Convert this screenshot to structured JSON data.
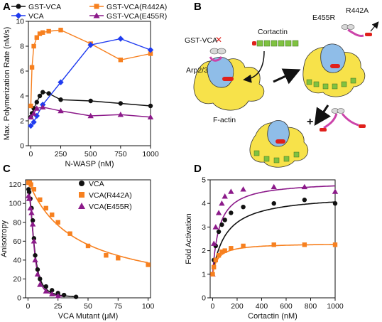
{
  "panels": {
    "A": "A",
    "B": "B",
    "C": "C",
    "D": "D"
  },
  "colors": {
    "black": "#111111",
    "orange": "#f7801f",
    "blue": "#1f3bf0",
    "purple": "#8c1a8a",
    "actin": "#f7e24a",
    "arp": "#8fbde8",
    "cortactin": "#7fc241",
    "vca_red": "#e0201b"
  },
  "diagram": {
    "labels": {
      "gst_vca": "GST-VCA",
      "cortactin": "Cortactin",
      "arp23": "Arp2/3",
      "factin": "F-actin",
      "e455r": "E455R",
      "r442a": "R442A",
      "plus": "+"
    }
  },
  "chart_data": [
    {
      "id": "A",
      "type": "line",
      "xlabel": "N-WASP (nM)",
      "ylabel": "Max. Polymerization Rate (nM/s)",
      "xlim": [
        -20,
        1000
      ],
      "ylim": [
        0,
        10
      ],
      "xticks": [
        0,
        250,
        500,
        750,
        1000
      ],
      "yticks": [
        0,
        2,
        4,
        6,
        8,
        10
      ],
      "legend": "top",
      "series": [
        {
          "name": "GST-VCA",
          "color": "#111111",
          "marker": "circle",
          "x": [
            0,
            10,
            25,
            50,
            75,
            100,
            150,
            250,
            500,
            750,
            1000
          ],
          "y": [
            2.3,
            2.6,
            3.0,
            3.5,
            4.0,
            4.3,
            4.2,
            3.7,
            3.6,
            3.4,
            3.2
          ]
        },
        {
          "name": "GST-VCA(R442A)",
          "color": "#f7801f",
          "marker": "square",
          "x": [
            0,
            10,
            25,
            50,
            75,
            100,
            150,
            250,
            500,
            750,
            1000
          ],
          "y": [
            3.2,
            6.3,
            8.0,
            8.7,
            9.0,
            9.1,
            9.2,
            9.3,
            8.2,
            6.9,
            7.4
          ]
        },
        {
          "name": "VCA",
          "color": "#1f3bf0",
          "marker": "diamond",
          "x": [
            0,
            25,
            50,
            100,
            250,
            500,
            750,
            1000
          ],
          "y": [
            1.6,
            1.9,
            2.4,
            3.3,
            5.1,
            8.1,
            8.6,
            7.7
          ]
        },
        {
          "name": "GST-VCA(E455R)",
          "color": "#8c1a8a",
          "marker": "triangle",
          "x": [
            0,
            25,
            50,
            100,
            250,
            500,
            750,
            1000
          ],
          "y": [
            2.3,
            2.6,
            3.0,
            3.1,
            2.8,
            2.4,
            2.5,
            2.3
          ]
        }
      ]
    },
    {
      "id": "C",
      "type": "scatter",
      "xlabel": "VCA Mutant (μM)",
      "ylabel": "Anisotropy",
      "xlim": [
        -2,
        102
      ],
      "ylim": [
        0,
        125
      ],
      "xticks": [
        0,
        25,
        50,
        75,
        100
      ],
      "yticks": [
        0,
        20,
        40,
        60,
        80,
        100,
        120
      ],
      "legend": "top-right",
      "series": [
        {
          "name": "VCA",
          "color": "#111111",
          "marker": "circle",
          "x": [
            0.5,
            1,
            2,
            3,
            4,
            5,
            6,
            8,
            10,
            15,
            20,
            25,
            30,
            40
          ],
          "y": [
            115,
            112,
            105,
            95,
            82,
            63,
            45,
            30,
            20,
            12,
            8,
            5,
            3,
            1
          ]
        },
        {
          "name": "VCA(R442A)",
          "color": "#f7801f",
          "marker": "square",
          "x": [
            0.5,
            1.5,
            2.5,
            5,
            10,
            15,
            20,
            25,
            35,
            50,
            65,
            75,
            100
          ],
          "y": [
            122,
            122,
            120,
            115,
            104,
            95,
            88,
            80,
            68,
            55,
            45,
            42,
            35
          ]
        },
        {
          "name": "VCA(E455R)",
          "color": "#8c1a8a",
          "marker": "triangle",
          "x": [
            0.5,
            1,
            2,
            3,
            4,
            5,
            6,
            8,
            10,
            15,
            20,
            25
          ],
          "y": [
            108,
            105,
            95,
            90,
            78,
            60,
            40,
            25,
            14,
            7,
            4,
            2
          ]
        }
      ]
    },
    {
      "id": "D",
      "type": "scatter",
      "xlabel": "Cortactin (nM)",
      "ylabel": "Fold Activation",
      "xlim": [
        -20,
        1000
      ],
      "ylim": [
        0,
        5
      ],
      "xticks": [
        0,
        200,
        400,
        600,
        800,
        1000
      ],
      "yticks": [
        0,
        1,
        2,
        3,
        4,
        5
      ],
      "series": [
        {
          "name": "",
          "color": "#111111",
          "marker": "circle",
          "x": [
            0,
            10,
            25,
            50,
            75,
            100,
            150,
            250,
            500,
            750,
            1000
          ],
          "y": [
            1.0,
            1.6,
            2.2,
            2.8,
            3.1,
            3.3,
            3.6,
            3.85,
            4.0,
            4.15,
            4.0
          ]
        },
        {
          "name": "",
          "color": "#8c1a8a",
          "marker": "triangle",
          "x": [
            0,
            10,
            25,
            50,
            75,
            100,
            150,
            250,
            500,
            750,
            1000
          ],
          "y": [
            1.0,
            2.3,
            3.0,
            3.6,
            4.0,
            4.3,
            4.5,
            4.6,
            4.7,
            4.7,
            4.5
          ]
        },
        {
          "name": "",
          "color": "#f7801f",
          "marker": "square",
          "x": [
            0,
            10,
            25,
            50,
            75,
            100,
            150,
            250,
            500,
            750,
            1000
          ],
          "y": [
            1.0,
            1.3,
            1.6,
            1.8,
            1.95,
            2.0,
            2.1,
            2.2,
            2.25,
            2.25,
            2.25
          ]
        }
      ]
    }
  ]
}
